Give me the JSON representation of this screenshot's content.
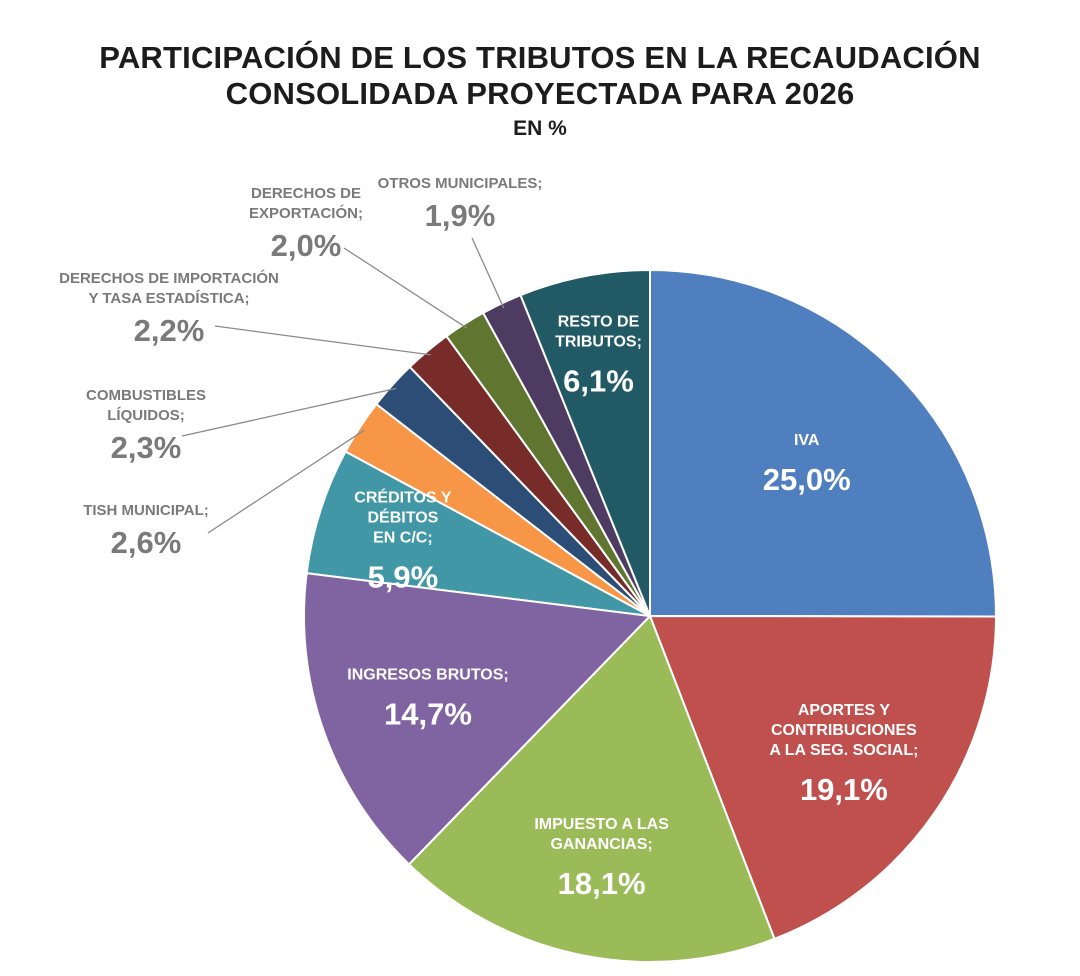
{
  "chart_data": {
    "type": "pie",
    "title_lines": [
      "PARTICIPACIÓN DE LOS TRIBUTOS EN LA RECAUDACIÓN",
      "CONSOLIDADA PROYECTADA PARA 2026"
    ],
    "subtitle": "EN %",
    "slices": [
      {
        "label_lines": [
          "IVA"
        ],
        "value": 25.0,
        "value_label": "25,0%",
        "color": "#4F7FBF",
        "placement": "inside"
      },
      {
        "label_lines": [
          "APORTES Y",
          "CONTRIBUCIONES",
          "A LA SEG. SOCIAL;"
        ],
        "value": 19.1,
        "value_label": "19,1%",
        "color": "#C0504D",
        "placement": "inside"
      },
      {
        "label_lines": [
          "IMPUESTO A LAS",
          "GANANCIAS;"
        ],
        "value": 18.1,
        "value_label": "18,1%",
        "color": "#9BBB59",
        "placement": "inside"
      },
      {
        "label_lines": [
          "INGRESOS BRUTOS;"
        ],
        "value": 14.7,
        "value_label": "14,7%",
        "color": "#8064A2",
        "placement": "inside"
      },
      {
        "label_lines": [
          "CRÉDITOS Y",
          "DÉBITOS",
          "EN C/C;"
        ],
        "value": 5.9,
        "value_label": "5,9%",
        "color": "#4197A5",
        "placement": "inside"
      },
      {
        "label_lines": [
          "TISH MUNICIPAL;"
        ],
        "value": 2.6,
        "value_label": "2,6%",
        "color": "#F79646",
        "placement": "outside"
      },
      {
        "label_lines": [
          "COMBUSTIBLES",
          "LÍQUIDOS;"
        ],
        "value": 2.3,
        "value_label": "2,3%",
        "color": "#2C4D75",
        "placement": "outside"
      },
      {
        "label_lines": [
          "DERECHOS DE IMPORTACIÓN",
          "Y TASA ESTADÍSTICA;"
        ],
        "value": 2.2,
        "value_label": "2,2%",
        "color": "#772C2A",
        "placement": "outside"
      },
      {
        "label_lines": [
          "DERECHOS DE",
          "EXPORTACIÓN;"
        ],
        "value": 2.0,
        "value_label": "2,0%",
        "color": "#5F7530",
        "placement": "outside"
      },
      {
        "label_lines": [
          "OTROS MUNICIPALES;"
        ],
        "value": 1.9,
        "value_label": "1,9%",
        "color": "#4D3B62",
        "placement": "outside"
      },
      {
        "label_lines": [
          "RESTO DE",
          "TRIBUTOS;"
        ],
        "value": 6.1,
        "value_label": "6,1%",
        "color": "#215A65",
        "placement": "inside"
      }
    ],
    "start_angle": "12 o'clock",
    "direction": "clockwise",
    "legend": "none"
  }
}
